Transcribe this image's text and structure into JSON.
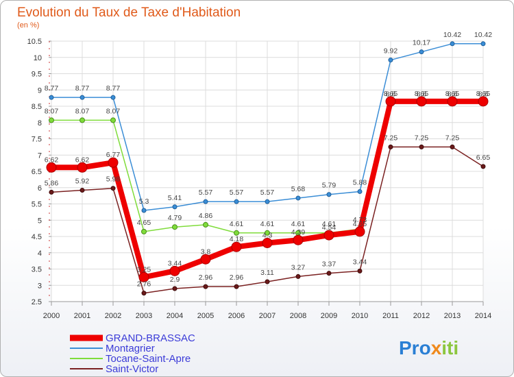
{
  "chart_data": {
    "type": "line",
    "title": "Evolution du Taux de Taxe d'Habitation",
    "subtitle": "(en %)",
    "x": [
      "2000",
      "2001",
      "2002",
      "2003",
      "2004",
      "2005",
      "2006",
      "2007",
      "2008",
      "2009",
      "2010",
      "2011",
      "2012",
      "2013",
      "2014"
    ],
    "ylim": [
      2.5,
      10.5
    ],
    "yticks": [
      "2.5",
      "3",
      "3.5",
      "4",
      "4.5",
      "5",
      "5.5",
      "6",
      "6.5",
      "7",
      "7.5",
      "8",
      "8.5",
      "9",
      "9.5",
      "10",
      "10.5"
    ],
    "grid": true,
    "legend_position": "bottom-left",
    "series": [
      {
        "name": "GRAND-BRASSAC",
        "color": "#ee0000",
        "values": [
          6.62,
          6.62,
          6.77,
          3.25,
          3.44,
          3.8,
          4.18,
          4.3,
          4.39,
          4.54,
          4.65,
          8.65,
          8.65,
          8.65,
          8.65
        ],
        "labels": [
          "6.62",
          "6.62",
          "6.77",
          "3.25",
          "3.44",
          "3.8",
          "4.18",
          "4.3",
          "4.39",
          "4.54",
          "4.65",
          "8.65",
          "8.65",
          "8.65",
          "8.65"
        ]
      },
      {
        "name": "Montagrier",
        "color": "#3a8dd6",
        "values": [
          8.77,
          8.77,
          8.77,
          5.3,
          5.41,
          5.57,
          5.57,
          5.57,
          5.68,
          5.79,
          5.88,
          9.92,
          10.17,
          10.42,
          10.42
        ],
        "labels": [
          "8.77",
          "8.77",
          "8.77",
          "5.3",
          "5.41",
          "5.57",
          "5.57",
          "5.57",
          "5.68",
          "5.79",
          "5.88",
          "9.92",
          "10.17",
          "10.42",
          "10.42"
        ]
      },
      {
        "name": "Tocane-Saint-Apre",
        "color": "#7fdc3a",
        "values": [
          8.07,
          8.07,
          8.07,
          4.65,
          4.79,
          4.86,
          4.61,
          4.61,
          4.61,
          4.61,
          4.73,
          8.6,
          8.6,
          8.6,
          8.6
        ],
        "labels": [
          "8.07",
          "8.07",
          "8.07",
          "4.65",
          "4.79",
          "4.86",
          "4.61",
          "4.61",
          "4.61",
          "4.61",
          "4.73",
          "8.6",
          "8.6",
          "8.6",
          "8.6"
        ]
      },
      {
        "name": "Saint-Victor",
        "color": "#7a2020",
        "values": [
          5.86,
          5.92,
          5.98,
          2.76,
          2.9,
          2.96,
          2.96,
          3.11,
          3.27,
          3.37,
          3.44,
          7.25,
          7.25,
          7.25,
          6.65
        ],
        "labels": [
          "5.86",
          "5.92",
          "5.98",
          "2.76",
          "2.9",
          "2.96",
          "2.96",
          "3.11",
          "3.27",
          "3.37",
          "3.44",
          "7.25",
          "7.25",
          "7.25",
          "6.65"
        ]
      }
    ]
  },
  "logo": {
    "text_blue": "Pro",
    "text_orange": "x",
    "text_green": "iti"
  }
}
